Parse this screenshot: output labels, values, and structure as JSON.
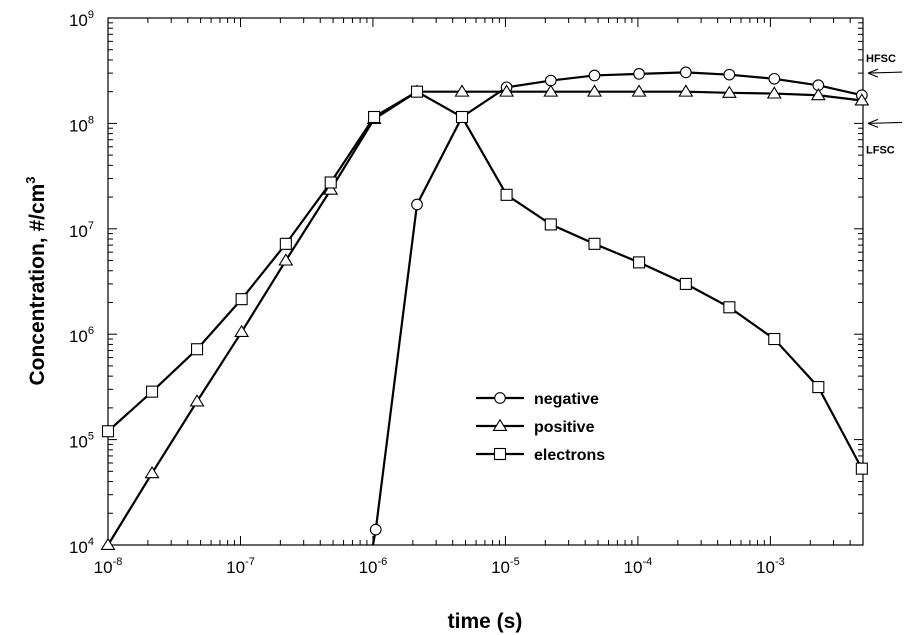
{
  "chart_data": {
    "type": "line",
    "xlabel": "time (s)",
    "ylabel_main": "Concentration, #/cm",
    "ylabel_sup": "3",
    "x_scale": "log",
    "y_scale": "log",
    "xlim": [
      1e-08,
      0.005
    ],
    "ylim": [
      10000.0,
      1000000000.0
    ],
    "x_ticks": [
      {
        "value": 1e-08,
        "base": "10",
        "exp": "-8"
      },
      {
        "value": 1e-07,
        "base": "10",
        "exp": "-7"
      },
      {
        "value": 1e-06,
        "base": "10",
        "exp": "-6"
      },
      {
        "value": 1e-05,
        "base": "10",
        "exp": "-5"
      },
      {
        "value": 0.0001,
        "base": "10",
        "exp": "-4"
      },
      {
        "value": 0.001,
        "base": "10",
        "exp": "-3"
      }
    ],
    "y_ticks": [
      {
        "value": 10000.0,
        "base": "10",
        "exp": "4"
      },
      {
        "value": 100000.0,
        "base": "10",
        "exp": "5"
      },
      {
        "value": 1000000.0,
        "base": "10",
        "exp": "6"
      },
      {
        "value": 10000000.0,
        "base": "10",
        "exp": "7"
      },
      {
        "value": 100000000.0,
        "base": "10",
        "exp": "8"
      },
      {
        "value": 1000000000.0,
        "base": "10",
        "exp": "9"
      }
    ],
    "grid": false,
    "legend_position": "center-right",
    "series": [
      {
        "name": "negative",
        "marker": "circle",
        "points": [
          [
            1e-06,
            10000.0
          ],
          [
            1.05e-06,
            14000.0
          ],
          [
            2.15e-06,
            17000000.0
          ],
          [
            4.7e-06,
            115000000.0
          ],
          [
            1.02e-05,
            220000000.0
          ],
          [
            2.2e-05,
            255000000.0
          ],
          [
            4.7e-05,
            285000000.0
          ],
          [
            0.000102,
            295000000.0
          ],
          [
            0.00023,
            305000000.0
          ],
          [
            0.00049,
            290000000.0
          ],
          [
            0.00107,
            265000000.0
          ],
          [
            0.0023,
            230000000.0
          ],
          [
            0.0049,
            185000000.0
          ]
        ],
        "marker_from_index": 1
      },
      {
        "name": "positive",
        "marker": "triangle",
        "points": [
          [
            1e-08,
            10000.0
          ],
          [
            2.15e-08,
            48000.0
          ],
          [
            4.7e-08,
            230000.0
          ],
          [
            1.02e-07,
            1050000.0
          ],
          [
            2.2e-07,
            5000000.0
          ],
          [
            4.8e-07,
            23500000.0
          ],
          [
            1.02e-06,
            110000000.0
          ],
          [
            2.15e-06,
            200000000.0
          ],
          [
            4.7e-06,
            200000000.0
          ],
          [
            1.02e-05,
            200000000.0
          ],
          [
            2.2e-05,
            200000000.0
          ],
          [
            4.7e-05,
            200000000.0
          ],
          [
            0.000102,
            200000000.0
          ],
          [
            0.00023,
            200000000.0
          ],
          [
            0.00049,
            195000000.0
          ],
          [
            0.00107,
            192000000.0
          ],
          [
            0.0023,
            185000000.0
          ],
          [
            0.0049,
            165000000.0
          ]
        ],
        "marker_from_index": 0
      },
      {
        "name": "electrons",
        "marker": "square",
        "points": [
          [
            1e-08,
            120000.0
          ],
          [
            2.15e-08,
            285000.0
          ],
          [
            4.7e-08,
            720000.0
          ],
          [
            1.02e-07,
            2150000.0
          ],
          [
            2.2e-07,
            7200000.0
          ],
          [
            4.8e-07,
            27500000.0
          ],
          [
            1.02e-06,
            115000000.0
          ],
          [
            2.15e-06,
            200000000.0
          ],
          [
            4.7e-06,
            115000000.0
          ],
          [
            1.02e-05,
            21000000.0
          ],
          [
            2.2e-05,
            11000000.0
          ],
          [
            4.7e-05,
            7200000.0
          ],
          [
            0.000102,
            4800000.0
          ],
          [
            0.00023,
            3000000.0
          ],
          [
            0.00049,
            1800000.0
          ],
          [
            0.00107,
            900000.0
          ],
          [
            0.0023,
            315000.0
          ],
          [
            0.0049,
            53000.0
          ]
        ],
        "marker_from_index": 0
      }
    ],
    "annotations": [
      {
        "label": "HFSC",
        "value": 300000000.0,
        "label_side": "above"
      },
      {
        "label": "LFSC",
        "value": 100000000.0,
        "label_side": "below"
      }
    ]
  }
}
